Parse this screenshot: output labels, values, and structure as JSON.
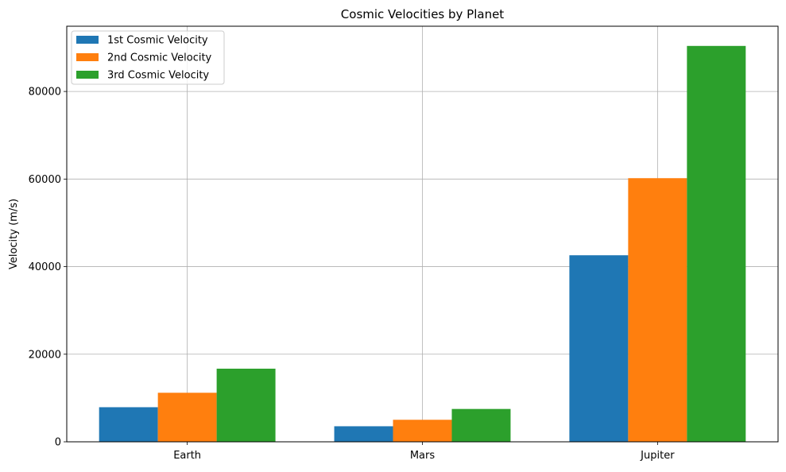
{
  "chart_data": {
    "type": "bar",
    "title": "Cosmic Velocities by Planet",
    "xlabel": "",
    "ylabel": "Velocity (m/s)",
    "categories": [
      "Earth",
      "Mars",
      "Jupiter"
    ],
    "series": [
      {
        "name": "1st Cosmic Velocity",
        "color": "#1f77b4",
        "values": [
          7900,
          3550,
          42600
        ]
      },
      {
        "name": "2nd Cosmic Velocity",
        "color": "#ff7f0e",
        "values": [
          11200,
          5030,
          60200
        ]
      },
      {
        "name": "3rd Cosmic Velocity",
        "color": "#2ca02c",
        "values": [
          16700,
          7500,
          90400
        ]
      }
    ],
    "ylim": [
      0,
      94900
    ],
    "yticks": [
      0,
      20000,
      40000,
      60000,
      80000
    ],
    "ytick_labels": [
      "0",
      "20000",
      "40000",
      "60000",
      "80000"
    ],
    "grid": true,
    "legend_position": "top-left"
  }
}
